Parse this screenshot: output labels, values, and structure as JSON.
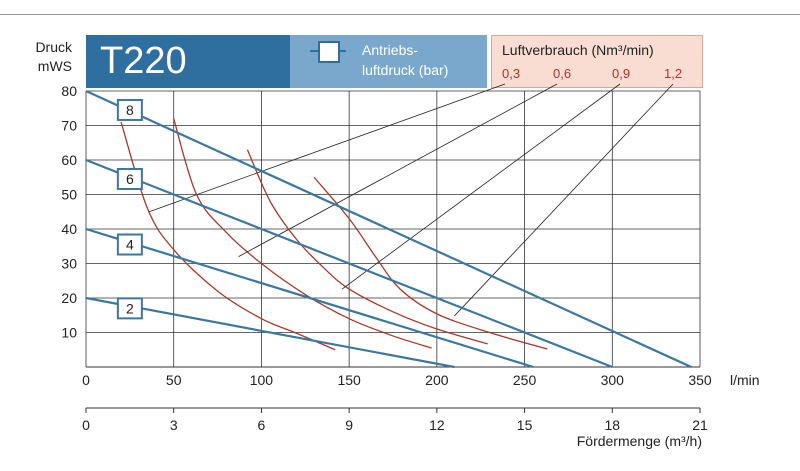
{
  "header": {
    "title": "T220",
    "legend_pressure": [
      "Antriebs-",
      "luftdruck (bar)"
    ],
    "legend_air_title": "Luftverbrauch (Nm³/min)",
    "legend_air_values": [
      "0,3",
      "0,6",
      "0,9",
      "1,2"
    ]
  },
  "colors": {
    "title_bg": "#2f6f9f",
    "legend_bg": "#7aa8cc",
    "air_bg": "#f9ddd2",
    "pressure_line": "#3a78a0",
    "air_curve": "#a33a2a"
  },
  "chart_data": {
    "type": "line",
    "ylabel": [
      "Druck",
      "mWS"
    ],
    "xlabel": "l/min",
    "x2label": "Fördermenge (m³/h)",
    "xlim": [
      0,
      350
    ],
    "ylim": [
      0,
      80
    ],
    "grid": true,
    "xticks": [
      "0",
      "50",
      "100",
      "150",
      "200",
      "250",
      "300",
      "350"
    ],
    "x2ticks": [
      "0",
      "3",
      "6",
      "9",
      "12",
      "15",
      "18",
      "21"
    ],
    "yticks": [
      "10",
      "20",
      "30",
      "40",
      "50",
      "60",
      "70",
      "80"
    ],
    "pressure_series": [
      {
        "name": "8",
        "points": [
          [
            0,
            80
          ],
          [
            345,
            0
          ]
        ],
        "label_at": [
          25,
          74.5
        ]
      },
      {
        "name": "6",
        "points": [
          [
            0,
            60
          ],
          [
            300,
            0
          ]
        ],
        "label_at": [
          25,
          54.5
        ]
      },
      {
        "name": "4",
        "points": [
          [
            0,
            40
          ],
          [
            255,
            0
          ]
        ],
        "label_at": [
          25,
          35.5
        ]
      },
      {
        "name": "2",
        "points": [
          [
            0,
            20
          ],
          [
            210,
            0
          ]
        ],
        "label_at": [
          25,
          17
        ]
      }
    ],
    "air_series": [
      {
        "name": "0,3",
        "points": [
          [
            20,
            71
          ],
          [
            35,
            46
          ],
          [
            50,
            34
          ],
          [
            75,
            22
          ],
          [
            100,
            14
          ],
          [
            119,
            10
          ],
          [
            142,
            5
          ]
        ],
        "leader_to": [
          36,
          45
        ]
      },
      {
        "name": "0,6",
        "points": [
          [
            50,
            72
          ],
          [
            63,
            50
          ],
          [
            80,
            39
          ],
          [
            100,
            30
          ],
          [
            125,
            21
          ],
          [
            150,
            14
          ],
          [
            175,
            9
          ],
          [
            197,
            5.5
          ]
        ],
        "leader_to": [
          87,
          32
        ]
      },
      {
        "name": "0,9",
        "points": [
          [
            92,
            63
          ],
          [
            105,
            48
          ],
          [
            120,
            37
          ],
          [
            135,
            29
          ],
          [
            150,
            22.6
          ],
          [
            175,
            16
          ],
          [
            200,
            11
          ],
          [
            229,
            6.7
          ]
        ],
        "leader_to": [
          146,
          22.6
        ]
      },
      {
        "name": "1,2",
        "points": [
          [
            130,
            55
          ],
          [
            150,
            43
          ],
          [
            165,
            32
          ],
          [
            179,
            22.6
          ],
          [
            200,
            15.4
          ],
          [
            230,
            10
          ],
          [
            263,
            5.2
          ]
        ],
        "leader_to": [
          210,
          14.8
        ]
      }
    ]
  }
}
